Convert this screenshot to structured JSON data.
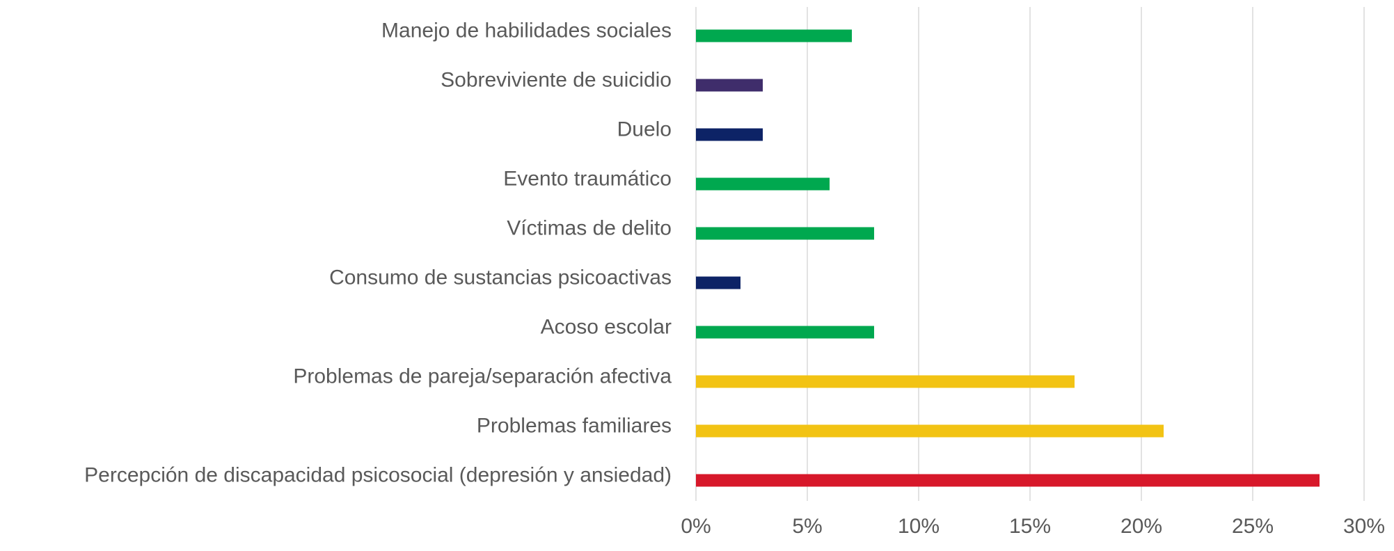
{
  "chart_data": {
    "type": "barh",
    "categories": [
      "Manejo de habilidades sociales",
      "Sobreviviente de suicidio",
      "Duelo",
      "Evento traumático",
      "Víctimas de delito",
      "Consumo de sustancias psicoactivas",
      "Acoso escolar",
      "Problemas de pareja/separación afectiva",
      "Problemas familiares",
      "Percepción de discapacidad psicosocial (depresión y ansiedad)"
    ],
    "values": [
      7,
      3,
      3,
      6,
      8,
      2,
      8,
      17,
      21,
      28
    ],
    "colors": [
      "#00a84f",
      "#3f2d6b",
      "#0d2366",
      "#00a84f",
      "#00a84f",
      "#0d2366",
      "#00a84f",
      "#f2c314",
      "#f2c314",
      "#d7182a"
    ],
    "xlim": [
      0,
      30
    ],
    "xticks": [
      {
        "value": 0,
        "label": "0%"
      },
      {
        "value": 5,
        "label": "5%"
      },
      {
        "value": 10,
        "label": "10%"
      },
      {
        "value": 15,
        "label": "15%"
      },
      {
        "value": 20,
        "label": "20%"
      },
      {
        "value": 25,
        "label": "25%"
      },
      {
        "value": 30,
        "label": "30%"
      }
    ],
    "grid": true
  }
}
